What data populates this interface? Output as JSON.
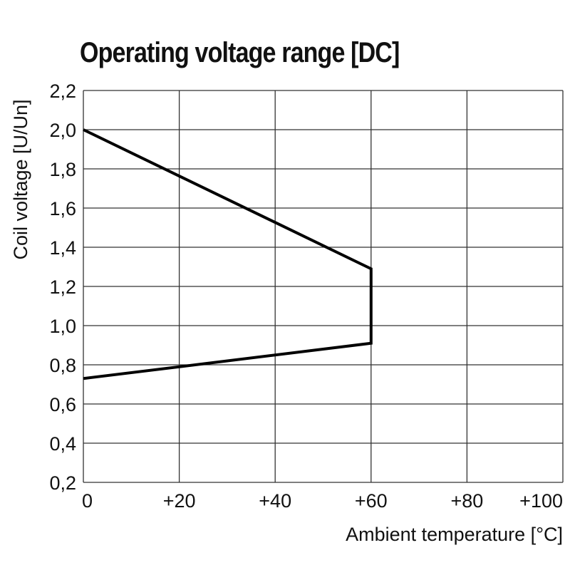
{
  "chart_data": {
    "type": "line",
    "title": "Operating voltage range [DC]",
    "xlabel": "Ambient temperature [°C]",
    "ylabel": "Coil voltage [U/Un]",
    "xlim": [
      0,
      100
    ],
    "ylim": [
      0.2,
      2.2
    ],
    "x_ticks": [
      "0",
      "+20",
      "+40",
      "+60",
      "+80",
      "+100"
    ],
    "x_tick_values": [
      0,
      20,
      40,
      60,
      80,
      100
    ],
    "y_ticks": [
      "2,2",
      "2,0",
      "1,8",
      "1,6",
      "1,4",
      "1,2",
      "1,0",
      "0,8",
      "0,6",
      "0,4",
      "0,2"
    ],
    "y_tick_values": [
      2.2,
      2.0,
      1.8,
      1.6,
      1.4,
      1.2,
      1.0,
      0.8,
      0.6,
      0.4,
      0.2
    ],
    "grid": true,
    "series": [
      {
        "x": [
          0,
          60,
          60,
          0
        ],
        "y": [
          2.0,
          1.29,
          0.91,
          0.73
        ],
        "color": "#000000"
      }
    ]
  }
}
